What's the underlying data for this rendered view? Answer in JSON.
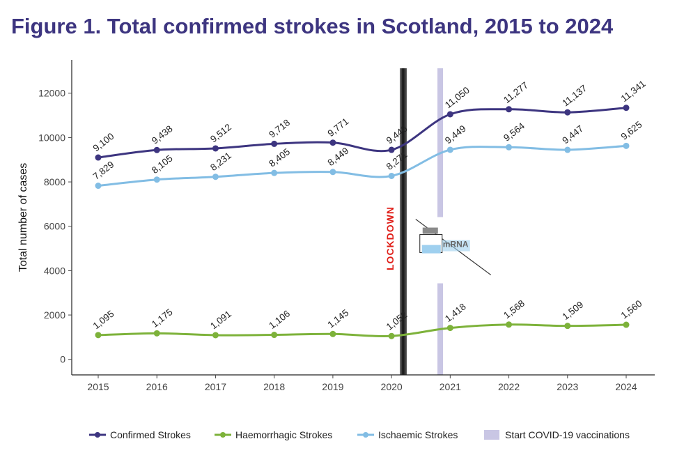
{
  "title": "Figure 1. Total confirmed strokes in Scotland, 2015 to 2024",
  "chart_data": {
    "type": "line",
    "title": "Figure 1. Total confirmed strokes in Scotland, 2015 to 2024",
    "xlabel": "",
    "ylabel": "Total number of cases",
    "x": [
      "2015",
      "2016",
      "2017",
      "2018",
      "2019",
      "2020",
      "2021",
      "2022",
      "2023",
      "2024"
    ],
    "xlim": [
      2015,
      2024
    ],
    "ylim": [
      -700,
      13500
    ],
    "yticks": [
      0,
      2000,
      4000,
      6000,
      8000,
      10000,
      12000
    ],
    "grid": false,
    "legend_position": "bottom",
    "series": [
      {
        "name": "Confirmed Strokes",
        "color": "#3d3580",
        "values": [
          9100,
          9438,
          9512,
          9718,
          9771,
          9446,
          11050,
          11277,
          11137,
          11341
        ],
        "labels": [
          "9,100",
          "9,438",
          "9,512",
          "9,718",
          "9,771",
          "9,446",
          "11,050",
          "11,277",
          "11,137",
          "11,341"
        ]
      },
      {
        "name": "Haemorrhagic Strokes",
        "color": "#7db23a",
        "values": [
          1095,
          1175,
          1091,
          1106,
          1145,
          1052,
          1418,
          1568,
          1509,
          1560
        ],
        "labels": [
          "1,095",
          "1,175",
          "1,091",
          "1,106",
          "1,145",
          "1,052",
          "1,418",
          "1,568",
          "1,509",
          "1,560"
        ]
      },
      {
        "name": "Ischaemic Strokes",
        "color": "#82bde4",
        "values": [
          7829,
          8105,
          8231,
          8405,
          8449,
          8271,
          9449,
          9564,
          9447,
          9625
        ],
        "labels": [
          "7,829",
          "8,105",
          "8,231",
          "8,405",
          "8,449",
          "8,271",
          "9,449",
          "9,564",
          "9,447",
          "9,625"
        ]
      }
    ],
    "annotations": [
      {
        "type": "vline",
        "label": "LOCKDOWN",
        "x": 2020.2,
        "color": "#1a1a1a",
        "text_color": "#e0201a"
      },
      {
        "type": "vline",
        "label": "Start COVID-19 vaccinations",
        "x": 2020.83,
        "color": "#c9c6e4"
      },
      {
        "type": "icon",
        "label": "mRNA",
        "x": 2021.1,
        "y": 5000
      }
    ],
    "legend": [
      {
        "label": "Confirmed Strokes",
        "kind": "line",
        "color": "#3d3580"
      },
      {
        "label": "Haemorrhagic Strokes",
        "kind": "line",
        "color": "#7db23a"
      },
      {
        "label": "Ischaemic Strokes",
        "kind": "line",
        "color": "#82bde4"
      },
      {
        "label": "Start COVID-19 vaccinations",
        "kind": "band",
        "color": "#c9c6e4"
      }
    ]
  }
}
